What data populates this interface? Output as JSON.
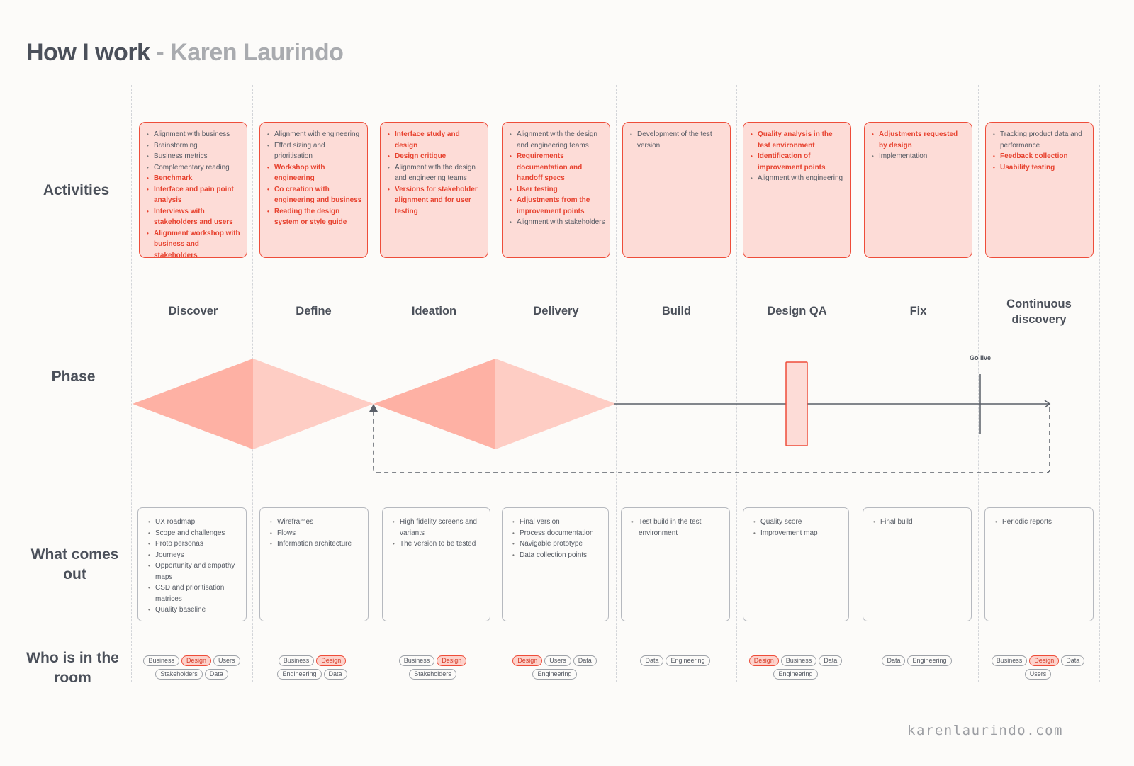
{
  "title": {
    "main": "How I work",
    "separator": " - ",
    "author": "Karen Laurindo"
  },
  "row_labels": {
    "activities": "Activities",
    "phase": "Phase",
    "outputs": "What comes out",
    "who": "Who is in the room"
  },
  "go_live_label": "Go live",
  "colors": {
    "accent": "#ee4d3a",
    "accent_fill": "#fddcd7",
    "diamond_dark": "#feb1a4",
    "diamond_light": "#fecdc4",
    "line": "#5a5f68"
  },
  "phases": [
    {
      "name": "Discover",
      "activities": [
        {
          "text": "Alignment with business",
          "highlight": false
        },
        {
          "text": "Brainstorming",
          "highlight": false
        },
        {
          "text": "Business metrics",
          "highlight": false
        },
        {
          "text": "Complementary reading",
          "highlight": false
        },
        {
          "text": "Benchmark",
          "highlight": true
        },
        {
          "text": "Interface and pain point analysis",
          "highlight": true
        },
        {
          "text": "Interviews with stakeholders and users",
          "highlight": true
        },
        {
          "text": "Alignment workshop with business and stakeholders",
          "highlight": true
        }
      ],
      "outputs": [
        "UX roadmap",
        "Scope and challenges",
        "Proto personas",
        "Journeys",
        "Opportunity and empathy maps",
        "CSD and prioritisation matrices",
        "Quality baseline"
      ],
      "who": [
        "Business",
        "Design",
        "Users",
        "Stakeholders",
        "Data"
      ]
    },
    {
      "name": "Define",
      "activities": [
        {
          "text": "Alignment with engineering",
          "highlight": false
        },
        {
          "text": "Effort sizing and prioritisation",
          "highlight": false
        },
        {
          "text": "Workshop with engineering",
          "highlight": true
        },
        {
          "text": "Co creation with engineering and business",
          "highlight": true
        },
        {
          "text": "Reading the design system or style guide",
          "highlight": true
        }
      ],
      "outputs": [
        "Wireframes",
        "Flows",
        "Information architecture"
      ],
      "who": [
        "Business",
        "Design",
        "Engineering",
        "Data"
      ]
    },
    {
      "name": "Ideation",
      "activities": [
        {
          "text": "Interface study and design",
          "highlight": true
        },
        {
          "text": "Design critique",
          "highlight": true
        },
        {
          "text": "Alignment with the design and engineering teams",
          "highlight": false
        },
        {
          "text": "Versions for stakeholder alignment and for user testing",
          "highlight": true
        }
      ],
      "outputs": [
        "High fidelity screens and variants",
        "The version to be tested"
      ],
      "who": [
        "Business",
        "Design",
        "Stakeholders"
      ]
    },
    {
      "name": "Delivery",
      "activities": [
        {
          "text": "Alignment with the design and engineering teams",
          "highlight": false
        },
        {
          "text": "Requirements documentation and handoff specs",
          "highlight": true
        },
        {
          "text": "User testing",
          "highlight": true
        },
        {
          "text": "Adjustments from the improvement points",
          "highlight": true
        },
        {
          "text": "Alignment with stakeholders",
          "highlight": false
        }
      ],
      "outputs": [
        "Final version",
        "Process documentation",
        "Navigable prototype",
        "Data collection points"
      ],
      "who": [
        "Design",
        "Users",
        "Data",
        "Engineering"
      ]
    },
    {
      "name": "Build",
      "activities": [
        {
          "text": "Development of the test version",
          "highlight": false
        }
      ],
      "outputs": [
        "Test build in the test environment"
      ],
      "who": [
        "Data",
        "Engineering"
      ]
    },
    {
      "name": "Design QA",
      "activities": [
        {
          "text": "Quality analysis in the test environment",
          "highlight": true
        },
        {
          "text": "Identification of improvement points",
          "highlight": true
        },
        {
          "text": "Alignment with engineering",
          "highlight": false
        }
      ],
      "outputs": [
        "Quality score",
        "Improvement map"
      ],
      "who": [
        "Design",
        "Business",
        "Data",
        "Engineering"
      ]
    },
    {
      "name": "Fix",
      "activities": [
        {
          "text": "Adjustments requested by design",
          "highlight": true
        },
        {
          "text": "Implementation",
          "highlight": false
        }
      ],
      "outputs": [
        "Final build"
      ],
      "who": [
        "Data",
        "Engineering"
      ]
    },
    {
      "name": "Continuous discovery",
      "activities": [
        {
          "text": "Tracking product data and performance",
          "highlight": false
        },
        {
          "text": "Feedback collection",
          "highlight": true
        },
        {
          "text": "Usability testing",
          "highlight": true
        }
      ],
      "outputs": [
        "Periodic reports"
      ],
      "who": [
        "Business",
        "Design",
        "Data",
        "Users"
      ]
    }
  ],
  "footer": "karenlaurindo.com"
}
